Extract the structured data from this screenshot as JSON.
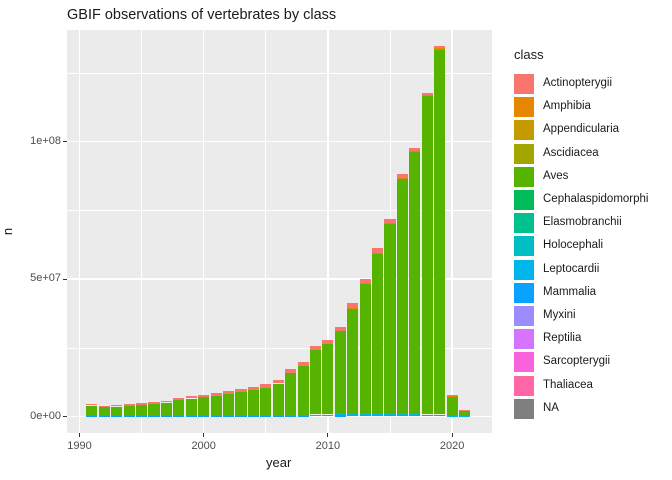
{
  "title": "GBIF observations of vertebrates by class",
  "axes": {
    "x": {
      "label": "year",
      "ticks": [
        "1990",
        "2000",
        "2010",
        "2020"
      ],
      "tick_years": [
        1990,
        2000,
        2010,
        2020
      ],
      "minor_years": [
        1995,
        2005,
        2015
      ]
    },
    "y": {
      "label": "n",
      "ticks": [
        "0e+00",
        "5e+07",
        "1e+08"
      ],
      "tick_values_millions": [
        0,
        50,
        100
      ],
      "minor_values_millions": [
        25,
        75,
        125
      ]
    }
  },
  "legend": {
    "title": "class",
    "entries": [
      {
        "label": "Actinopterygii",
        "color": "#F8766D"
      },
      {
        "label": "Amphibia",
        "color": "#E58700"
      },
      {
        "label": "Appendicularia",
        "color": "#C59900"
      },
      {
        "label": "Ascidiacea",
        "color": "#A3A500"
      },
      {
        "label": "Aves",
        "color": "#56B400"
      },
      {
        "label": "Cephalaspidomorphi",
        "color": "#00BC59"
      },
      {
        "label": "Elasmobranchii",
        "color": "#00C08E"
      },
      {
        "label": "Holocephali",
        "color": "#00BFC4"
      },
      {
        "label": "Leptocardii",
        "color": "#00B6EB"
      },
      {
        "label": "Mammalia",
        "color": "#09A2FF"
      },
      {
        "label": "Myxini",
        "color": "#9C8DFF"
      },
      {
        "label": "Reptilia",
        "color": "#D575FE"
      },
      {
        "label": "Sarcopterygii",
        "color": "#F962DD"
      },
      {
        "label": "Thaliacea",
        "color": "#FF66A8"
      },
      {
        "label": "NA",
        "color": "#7F7F7F"
      }
    ]
  },
  "chart_data": {
    "type": "bar",
    "stacked": true,
    "title": "GBIF observations of vertebrates by class",
    "xlabel": "year",
    "ylabel": "n",
    "ylim_millions": [
      0,
      140
    ],
    "grid": true,
    "legend_position": "right",
    "years": [
      1991,
      1992,
      1993,
      1994,
      1995,
      1996,
      1997,
      1998,
      1999,
      2000,
      2001,
      2002,
      2003,
      2004,
      2005,
      2006,
      2007,
      2008,
      2009,
      2010,
      2011,
      2012,
      2013,
      2014,
      2015,
      2016,
      2017,
      2018,
      2019,
      2020,
      2021
    ],
    "totals_millions": [
      4.6,
      4.0,
      4.2,
      4.5,
      4.8,
      5.2,
      5.8,
      6.6,
      7.3,
      8.0,
      8.5,
      9.2,
      10.0,
      10.9,
      11.8,
      13.4,
      17.3,
      19.8,
      25.6,
      27.7,
      32.6,
      41.2,
      50.0,
      61.2,
      71.8,
      88.2,
      97.7,
      117.8,
      134.6,
      7.8,
      2.3
    ],
    "stack_order_bottom_to_top": [
      "Mammalia",
      "Leptocardii",
      "Aves",
      "Amphibia",
      "Actinopterygii"
    ],
    "series": [
      {
        "name": "Mammalia",
        "values_millions": [
          0.1,
          0.1,
          0.1,
          0.1,
          0.1,
          0.1,
          0.12,
          0.12,
          0.15,
          0.15,
          0.15,
          0.18,
          0.2,
          0.2,
          0.25,
          0.25,
          0.3,
          0.3,
          0.5,
          0.5,
          0.55,
          0.6,
          0.65,
          0.65,
          0.65,
          0.7,
          0.7,
          0.7,
          0.7,
          0.2,
          0.05
        ]
      },
      {
        "name": "Leptocardii",
        "values_millions": [
          0,
          0,
          0,
          0,
          0,
          0,
          0,
          0,
          0,
          0,
          0,
          0,
          0,
          0,
          0,
          0,
          0.1,
          0.1,
          0.2,
          0.2,
          0.3,
          0.35,
          0.4,
          0.4,
          0.4,
          0.4,
          0.4,
          0.45,
          0.45,
          0.1,
          0.03
        ]
      },
      {
        "name": "Aves",
        "values_millions": [
          3.9,
          3.35,
          3.55,
          3.8,
          4.1,
          4.4,
          4.98,
          5.78,
          6.4,
          6.85,
          7.35,
          8.02,
          8.7,
          9.5,
          10.15,
          11.75,
          15.4,
          18.0,
          23.4,
          25.5,
          30.25,
          38.35,
          47.05,
          58.25,
          69.1,
          85.45,
          95.1,
          115.3,
          132.25,
          7.15,
          2.12
        ]
      },
      {
        "name": "Amphibia",
        "values_millions": [
          0,
          0,
          0,
          0,
          0,
          0,
          0,
          0,
          0,
          0,
          0,
          0,
          0,
          0,
          0,
          0,
          0,
          0,
          0,
          0,
          0,
          0.3,
          0.3,
          0.3,
          0.35,
          0.35,
          0.4,
          0.45,
          0.5,
          0.05,
          0
        ]
      },
      {
        "name": "Actinopterygii",
        "values_millions": [
          0.6,
          0.55,
          0.55,
          0.6,
          0.6,
          0.7,
          0.7,
          0.7,
          0.75,
          1.0,
          1.0,
          1.0,
          1.1,
          1.2,
          1.4,
          1.4,
          1.5,
          1.4,
          1.5,
          1.5,
          1.5,
          1.6,
          1.6,
          1.6,
          1.3,
          1.3,
          1.1,
          0.9,
          0.7,
          0.3,
          0.1
        ]
      }
    ],
    "note_series_not_visible": [
      "Appendicularia",
      "Ascidiacea",
      "Cephalaspidomorphi",
      "Elasmobranchii",
      "Holocephali",
      "Myxini",
      "Reptilia",
      "Sarcopterygii",
      "Thaliacea",
      "NA"
    ]
  },
  "colors": {
    "background": "#FFFFFF",
    "panel_bg": "#EBEBEB",
    "grid": "#FFFFFF",
    "tick_text": "#4D4D4D",
    "title_text": "#1A1A1A"
  }
}
